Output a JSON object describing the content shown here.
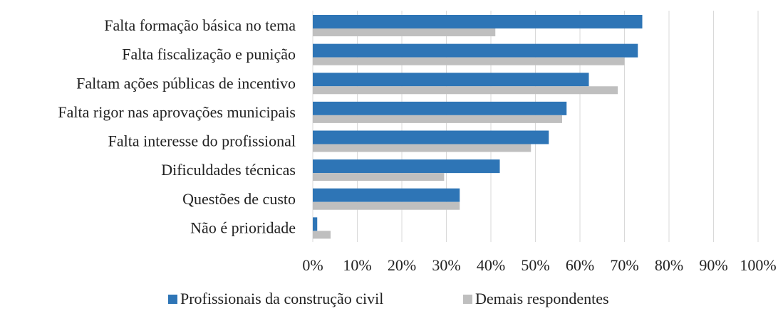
{
  "chart_data": {
    "type": "bar",
    "orientation": "horizontal",
    "categories": [
      "Falta formação básica no tema",
      "Falta fiscalização e punição",
      "Faltam ações públicas de incentivo",
      "Falta rigor nas aprovações municipais",
      "Falta interesse do profissional",
      "Dificuldades técnicas",
      "Questões de custo",
      "Não é prioridade"
    ],
    "series": [
      {
        "name": "Profissionais da construção civil",
        "color": "#2e75b6",
        "values": [
          74,
          73,
          62,
          57,
          53,
          42,
          33,
          1
        ]
      },
      {
        "name": "Demais respondentes",
        "color": "#bfbfbf",
        "values": [
          41,
          70,
          68.5,
          56,
          49,
          29.5,
          33,
          4
        ]
      }
    ],
    "xlim": [
      0,
      100
    ],
    "xticks": [
      {
        "value": 0,
        "label": "0%"
      },
      {
        "value": 10,
        "label": "10%"
      },
      {
        "value": 20,
        "label": "20%"
      },
      {
        "value": 30,
        "label": "30%"
      },
      {
        "value": 40,
        "label": "40%"
      },
      {
        "value": 50,
        "label": "50%"
      },
      {
        "value": 60,
        "label": "60%"
      },
      {
        "value": 70,
        "label": "70%"
      },
      {
        "value": 80,
        "label": "80%"
      },
      {
        "value": 90,
        "label": "90%"
      },
      {
        "value": 100,
        "label": "100%"
      }
    ],
    "grid": true,
    "legend": "bottom"
  }
}
